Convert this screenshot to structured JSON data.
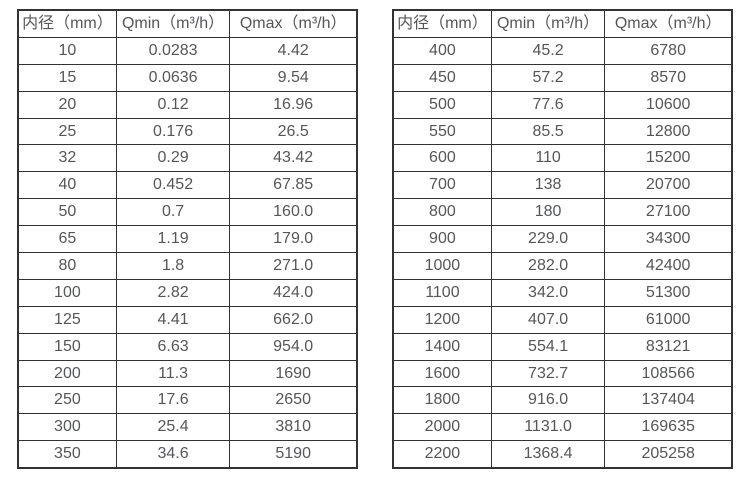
{
  "colors": {
    "border": "#333333",
    "text": "#555658",
    "background": "#ffffff"
  },
  "tables": [
    {
      "name": "flow-rate-table-small-diameters",
      "headers": [
        "内径（mm）",
        "Qmin（m³/h）",
        "Qmax（m³/h）"
      ],
      "rows": [
        [
          "10",
          "0.0283",
          "4.42"
        ],
        [
          "15",
          "0.0636",
          "9.54"
        ],
        [
          "20",
          "0.12",
          "16.96"
        ],
        [
          "25",
          "0.176",
          "26.5"
        ],
        [
          "32",
          "0.29",
          "43.42"
        ],
        [
          "40",
          "0.452",
          "67.85"
        ],
        [
          "50",
          "0.7",
          "160.0"
        ],
        [
          "65",
          "1.19",
          "179.0"
        ],
        [
          "80",
          "1.8",
          "271.0"
        ],
        [
          "100",
          "2.82",
          "424.0"
        ],
        [
          "125",
          "4.41",
          "662.0"
        ],
        [
          "150",
          "6.63",
          "954.0"
        ],
        [
          "200",
          "11.3",
          "1690"
        ],
        [
          "250",
          "17.6",
          "2650"
        ],
        [
          "300",
          "25.4",
          "3810"
        ],
        [
          "350",
          "34.6",
          "5190"
        ]
      ]
    },
    {
      "name": "flow-rate-table-large-diameters",
      "headers": [
        "内径（mm）",
        "Qmin（m³/h）",
        "Qmax（m³/h）"
      ],
      "rows": [
        [
          "400",
          "45.2",
          "6780"
        ],
        [
          "450",
          "57.2",
          "8570"
        ],
        [
          "500",
          "77.6",
          "10600"
        ],
        [
          "550",
          "85.5",
          "12800"
        ],
        [
          "600",
          "110",
          "15200"
        ],
        [
          "700",
          "138",
          "20700"
        ],
        [
          "800",
          "180",
          "27100"
        ],
        [
          "900",
          "229.0",
          "34300"
        ],
        [
          "1000",
          "282.0",
          "42400"
        ],
        [
          "1100",
          "342.0",
          "51300"
        ],
        [
          "1200",
          "407.0",
          "61000"
        ],
        [
          "1400",
          "554.1",
          "83121"
        ],
        [
          "1600",
          "732.7",
          "108566"
        ],
        [
          "1800",
          "916.0",
          "137404"
        ],
        [
          "2000",
          "1131.0",
          "169635"
        ],
        [
          "2200",
          "1368.4",
          "205258"
        ]
      ]
    }
  ]
}
